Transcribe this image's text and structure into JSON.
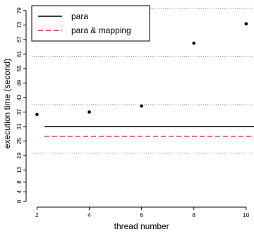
{
  "chart_data": {
    "type": "scatter",
    "xlabel": "thread number",
    "ylabel": "execution time (second)",
    "x_ticks": [
      2,
      4,
      6,
      8,
      10
    ],
    "y_ticks": [
      0,
      4,
      8,
      13,
      19,
      25,
      31,
      37,
      43,
      49,
      55,
      61,
      67,
      73,
      79
    ],
    "xlim": [
      1.8,
      10.3
    ],
    "ylim": [
      0,
      81
    ],
    "grid_y": [
      20,
      40,
      60,
      80
    ],
    "points": {
      "x": [
        2,
        4,
        6,
        8,
        10
      ],
      "y": [
        36,
        37,
        39.5,
        65.5,
        73.5
      ]
    },
    "reference_lines": [
      {
        "name": "para",
        "y": 31,
        "style": "solid",
        "color": "#000000"
      },
      {
        "name": "para & mapping",
        "y": 27,
        "style": "dashed",
        "color": "#cc2233"
      }
    ],
    "legend_position": "top-left"
  }
}
